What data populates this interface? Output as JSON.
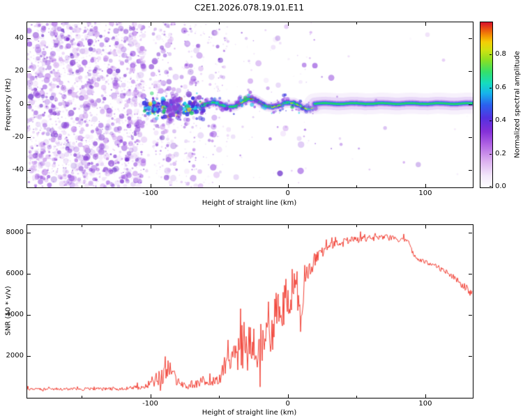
{
  "title": "C2E1.2026.078.19.01.E11",
  "chart_data": [
    {
      "type": "heatmap",
      "panel": "spectrogram",
      "title": "",
      "xlabel": "Height of straight line (km)",
      "ylabel": "Frequency (Hz)",
      "xlim": [
        -190,
        134
      ],
      "ylim": [
        -50,
        50
      ],
      "xticks": [
        -100,
        0,
        100
      ],
      "yticks": [
        -40,
        -20,
        0,
        20,
        40
      ],
      "grid": false,
      "colorbar": {
        "label": "Normalized spectral amplitude",
        "ticks": [
          "0.0",
          "0.2",
          "0.4",
          "0.6",
          "0.8"
        ],
        "range": [
          0,
          1
        ],
        "stops": [
          [
            0.0,
            "#ffffff"
          ],
          [
            0.07,
            "#f3e8fb"
          ],
          [
            0.16,
            "#dcb0f0"
          ],
          [
            0.26,
            "#b063e4"
          ],
          [
            0.34,
            "#8430d8"
          ],
          [
            0.42,
            "#5530e0"
          ],
          [
            0.5,
            "#2b62ee"
          ],
          [
            0.57,
            "#17b4ec"
          ],
          [
            0.63,
            "#15dcc0"
          ],
          [
            0.7,
            "#35e06a"
          ],
          [
            0.77,
            "#8ae024"
          ],
          [
            0.83,
            "#cfe312"
          ],
          [
            0.88,
            "#f4cf06"
          ],
          [
            0.92,
            "#f49104"
          ],
          [
            0.96,
            "#ea4f12"
          ],
          [
            1.0,
            "#d8102c"
          ]
        ]
      },
      "content": {
        "description": "Dense purple speckle noise left of -100 km; white gaps and vertical speckle columns between -100 and -45 km; narrow spectral line near 0 Hz appearing around -105 km as a blue/cyan blob cluster, wiggly multicolour ridge (blue halo, cyan/green core, yellow-orange dashes) from -60 to +20 km, then a smooth horizontal green/cyan/blue stripe with wide purple fringe from +20 km to the right edge",
        "speckle_regions": [
          {
            "x0": -190,
            "x1": -105,
            "d": 1.0
          },
          {
            "x0": -105,
            "x1": -98,
            "d": 0.15
          },
          {
            "x0": -98,
            "x1": -85,
            "d": 0.6
          },
          {
            "x0": -85,
            "x1": -76,
            "d": 0.12
          },
          {
            "x0": -76,
            "x1": -67,
            "d": 0.5
          },
          {
            "x0": -67,
            "x1": -55,
            "d": 0.18
          },
          {
            "x0": -55,
            "x1": -44,
            "d": 0.28
          },
          {
            "x0": -44,
            "x1": 20,
            "d": 0.05
          },
          {
            "x0": 20,
            "x1": 134,
            "d": 0.012
          }
        ],
        "band": {
          "cluster": {
            "x0": -105,
            "x1": -62,
            "center_hz": -1.5,
            "sigma_hz": 3.0
          },
          "wiggly": {
            "x0": -63,
            "x1": 20,
            "center_hz": 0.4,
            "amp1_hz": 2.0,
            "amp2_hz": 1.1
          },
          "stripe": {
            "x0": 19,
            "x1": 134,
            "center_hz": 0.8
          }
        }
      }
    },
    {
      "type": "line",
      "panel": "snr",
      "title": "",
      "xlabel": "Height of straight line (km)",
      "ylabel": "SNR (10 * v/v)",
      "xlim": [
        -190,
        134
      ],
      "ylim": [
        0,
        8400
      ],
      "xticks": [
        -100,
        0,
        100
      ],
      "yticks": [
        2000,
        4000,
        6000,
        8000
      ],
      "grid": false,
      "series": [
        {
          "name": "SNR",
          "color": "#ef2f23",
          "points": [
            [
              -190,
              420,
              150
            ],
            [
              -150,
              420,
              150
            ],
            [
              -120,
              430,
              160
            ],
            [
              -108,
              500,
              250
            ],
            [
              -100,
              700,
              500
            ],
            [
              -93,
              1000,
              900
            ],
            [
              -87,
              1300,
              1100
            ],
            [
              -82,
              900,
              700
            ],
            [
              -77,
              600,
              350
            ],
            [
              -72,
              520,
              250
            ],
            [
              -66,
              700,
              500
            ],
            [
              -62,
              900,
              700
            ],
            [
              -58,
              650,
              400
            ],
            [
              -54,
              800,
              600
            ],
            [
              -50,
              1000,
              800
            ],
            [
              -46,
              1400,
              1000
            ],
            [
              -42,
              1700,
              1400
            ],
            [
              -38,
              2200,
              2200
            ],
            [
              -34,
              2400,
              2600
            ],
            [
              -30,
              2200,
              2400
            ],
            [
              -26,
              2400,
              2400
            ],
            [
              -22,
              2300,
              2200
            ],
            [
              -18,
              2600,
              2400
            ],
            [
              -14,
              3000,
              2600
            ],
            [
              -10,
              3400,
              2800
            ],
            [
              -6,
              4000,
              2800
            ],
            [
              -2,
              4600,
              2600
            ],
            [
              2,
              5000,
              2400
            ],
            [
              5,
              5600,
              2000
            ],
            [
              8,
              4600,
              2600
            ],
            [
              10,
              3400,
              1400
            ],
            [
              12,
              5800,
              1400
            ],
            [
              15,
              6200,
              1100
            ],
            [
              18,
              6500,
              900
            ],
            [
              22,
              6900,
              700
            ],
            [
              27,
              7200,
              550
            ],
            [
              32,
              7400,
              450
            ],
            [
              40,
              7600,
              380
            ],
            [
              50,
              7700,
              350
            ],
            [
              60,
              7750,
              350
            ],
            [
              70,
              7800,
              320
            ],
            [
              80,
              7700,
              320
            ],
            [
              87,
              7600,
              300
            ],
            [
              91,
              7000,
              260
            ],
            [
              94,
              6700,
              250
            ],
            [
              100,
              6600,
              260
            ],
            [
              105,
              6500,
              260
            ],
            [
              110,
              6300,
              280
            ],
            [
              115,
              6100,
              300
            ],
            [
              120,
              5900,
              320
            ],
            [
              125,
              5600,
              340
            ],
            [
              130,
              5300,
              360
            ],
            [
              134,
              5000,
              360
            ]
          ]
        }
      ]
    }
  ]
}
